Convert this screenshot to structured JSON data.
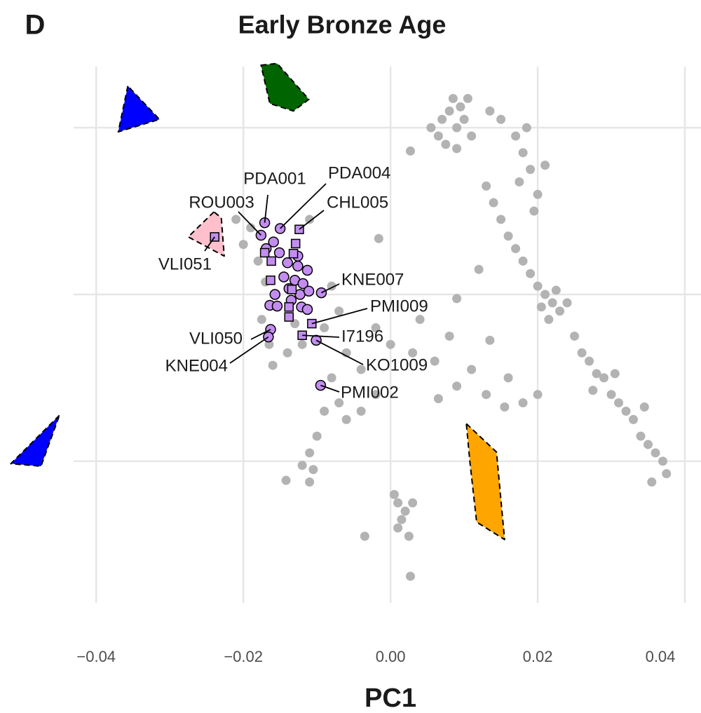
{
  "chart_data": {
    "type": "scatter",
    "panel": "D",
    "title": "Early Bronze Age",
    "x_label": "PC1",
    "xlim": [
      -0.0525,
      0.042
    ],
    "ylim": [
      -0.037,
      0.028
    ],
    "xticks": [
      {
        "value": -0.04,
        "label": "−0.04"
      },
      {
        "value": -0.02,
        "label": "−0.02"
      },
      {
        "value": 0,
        "label": "0.00"
      },
      0.02,
      0.04
    ],
    "yticks": [
      -0.02,
      0,
      0.02
    ],
    "grid": true,
    "hulls": [
      {
        "color": "#0000ff",
        "x": [
          -0.0357,
          -0.037,
          -0.0314
        ],
        "y": [
          0.025,
          0.0195,
          0.021
        ]
      },
      {
        "color": "#0000ff",
        "x": [
          -0.045,
          -0.0516,
          -0.0475
        ],
        "y": [
          -0.0145,
          -0.0203,
          -0.0206
        ]
      },
      {
        "color": "#006400",
        "x": [
          -0.0176,
          -0.0154,
          -0.0111,
          -0.0132,
          -0.0164
        ],
        "y": [
          0.0275,
          0.0277,
          0.0234,
          0.022,
          0.0229
        ]
      },
      {
        "color": "#ffc0cb",
        "x": [
          -0.024,
          -0.0275,
          -0.0226,
          -0.023
        ],
        "y": [
          0.0099,
          0.0069,
          0.0046,
          0.0092
        ]
      },
      {
        "color": "#ffa500",
        "x": [
          0.0103,
          0.0144,
          0.0155,
          0.0117,
          0.0108
        ],
        "y": [
          -0.0155,
          -0.0189,
          -0.0294,
          -0.0273,
          -0.0202
        ]
      }
    ],
    "series": [
      {
        "color": "#b3b3b3",
        "shape": "dot",
        "x": [
          0.007,
          0.008,
          0.009,
          0.01,
          0.0065,
          0.0085,
          0.0095,
          0.0075,
          0.011,
          0.0105,
          0.0055,
          0.009,
          0.0135,
          0.015,
          0.017,
          0.018,
          0.019,
          0.0175,
          0.02,
          0.0195,
          0.021,
          0.0185,
          0.013,
          0.014,
          0.015,
          0.016,
          0.017,
          0.018,
          0.019,
          0.02,
          0.021,
          0.022,
          0.023,
          0.0215,
          0.0225,
          0.024,
          0.0205,
          0.025,
          0.026,
          0.027,
          0.028,
          0.029,
          0.03,
          0.031,
          0.032,
          0.033,
          0.034,
          0.035,
          0.036,
          0.037,
          0.0375,
          0.0355,
          0.0275,
          0.0305,
          0.0345,
          0,
          0.003,
          0.006,
          0.009,
          0.011,
          0.013,
          0.016,
          0.018,
          0.008,
          0.004,
          -0.002,
          0.0065,
          0.02,
          0.0155,
          -0.019,
          -0.02,
          -0.021,
          -0.018,
          -0.017,
          -0.0175,
          -0.0165,
          -0.014,
          -0.012,
          -0.009,
          -0.007,
          -0.008,
          -0.011,
          -0.006,
          -0.004,
          -0.016,
          -0.013,
          -0.008,
          -0.007,
          -0.006,
          -0.009,
          -0.01,
          -0.011,
          -0.0105,
          -0.012,
          -0.011,
          -0.004,
          -0.002,
          0.0005,
          0.001,
          0.002,
          0.0015,
          0.003,
          0.001,
          0.0025,
          0.0027,
          -0.0035,
          -0.0142,
          -0.0016,
          0.0027,
          0.009,
          0.012,
          0.0135
        ],
        "values": [
          0.021,
          0.022,
          0.02,
          0.021,
          0.019,
          0.0235,
          0.0225,
          0.018,
          0.019,
          0.0235,
          0.02,
          0.0175,
          0.022,
          0.021,
          0.019,
          0.017,
          0.015,
          0.0135,
          0.012,
          0.01,
          0.0155,
          0.02,
          0.013,
          0.011,
          0.009,
          0.007,
          0.0055,
          0.004,
          0.0025,
          0.001,
          0,
          -0.001,
          -0.002,
          -0.003,
          0.0005,
          -0.001,
          -0.0015,
          -0.005,
          -0.007,
          -0.008,
          -0.0095,
          -0.01,
          -0.012,
          -0.013,
          -0.014,
          -0.015,
          -0.017,
          -0.018,
          -0.019,
          -0.02,
          -0.0215,
          -0.0225,
          -0.0115,
          -0.0095,
          -0.0135,
          -0.006,
          -0.007,
          -0.008,
          -0.011,
          -0.009,
          -0.012,
          -0.01,
          -0.013,
          -0.005,
          -0.003,
          -0.004,
          -0.0125,
          -0.012,
          -0.0135,
          0.008,
          0.006,
          0.009,
          0.004,
          0.0015,
          -0.003,
          -0.006,
          -0.007,
          -0.006,
          -0.004,
          -0.002,
          0.001,
          0.009,
          -0.007,
          -0.009,
          -0.0085,
          -0.0035,
          -0.01,
          -0.013,
          -0.015,
          -0.014,
          -0.017,
          -0.019,
          -0.021,
          -0.0205,
          -0.0225,
          -0.014,
          -0.012,
          -0.024,
          -0.025,
          -0.026,
          -0.027,
          -0.025,
          -0.028,
          -0.029,
          -0.0338,
          -0.029,
          -0.0223,
          0.0067,
          0.0172,
          -0.0005,
          0.003,
          -0.0055
        ]
      },
      {
        "color": "#c38df0",
        "shape": "circle",
        "x": [
          -0.0171,
          -0.015,
          -0.0176,
          -0.0094,
          -0.0101,
          -0.0163,
          -0.0166,
          -0.0095,
          -0.0159,
          -0.0151,
          -0.014,
          -0.0126,
          -0.0113,
          -0.0145,
          -0.013,
          -0.0119,
          -0.0138,
          -0.0123,
          -0.0111,
          -0.0157,
          -0.0135,
          -0.0121,
          -0.0164,
          -0.0113,
          -0.0154,
          -0.0169,
          -0.0126
        ],
        "values": [
          0.0086,
          0.0079,
          0.0071,
          0.0002,
          -0.0055,
          -0.0042,
          -0.0051,
          -0.0109,
          0.0063,
          0.005,
          0.0038,
          0.0034,
          0.0029,
          0.0021,
          0.0017,
          0.0013,
          0.0007,
          0,
          0.0004,
          0,
          -0.0007,
          -0.0015,
          -0.0013,
          -0.0018,
          -0.0014,
          0.0055,
          0.0046
        ],
        "point_labels": [
          "PDA001",
          "PDA004",
          "ROU003",
          "KNE007",
          "KO1009",
          "VLI050",
          "KNE004",
          "PMI002",
          null,
          null,
          null,
          null,
          null,
          null,
          null,
          null,
          null,
          null,
          null,
          null,
          null,
          null,
          null,
          null,
          null,
          null,
          null
        ]
      },
      {
        "color": "#c38df0",
        "shape": "square",
        "x": [
          -0.0124,
          -0.0239,
          -0.0107,
          -0.012,
          -0.0129,
          -0.0171,
          -0.0162,
          -0.0132,
          -0.0163,
          -0.0138,
          -0.0138,
          -0.0134
        ],
        "values": [
          0.0078,
          0.0069,
          -0.0035,
          -0.0049,
          0.0061,
          0.005,
          0.004,
          0.0049,
          0.0017,
          -0.0015,
          -0.0027,
          0.0006
        ],
        "point_labels": [
          "CHL005",
          "VLI051",
          "PMI009",
          "I7196",
          null,
          null,
          null,
          null,
          null,
          null,
          null,
          null
        ]
      }
    ]
  }
}
